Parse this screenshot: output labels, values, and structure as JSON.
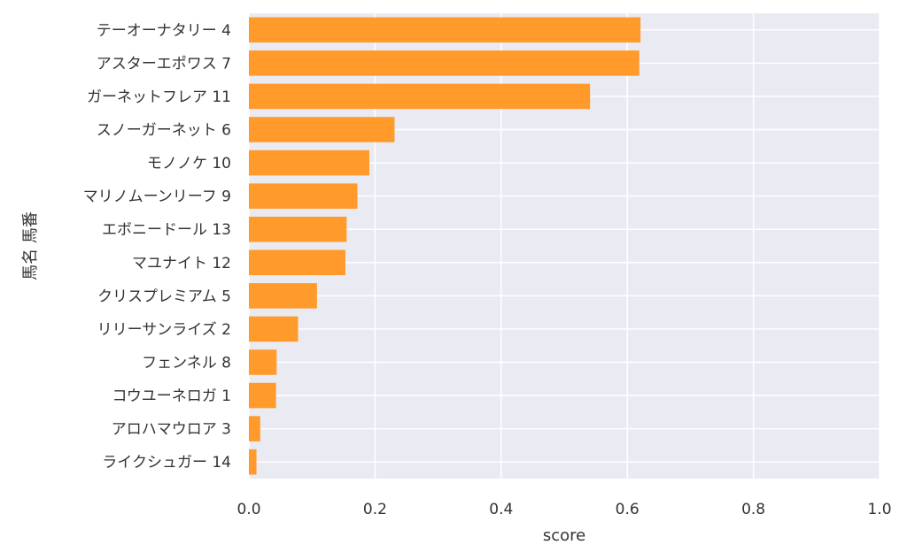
{
  "chart_data": {
    "type": "bar",
    "orientation": "horizontal",
    "categories": [
      "テーオーナタリー 4",
      "アスターエポワス 7",
      "ガーネットフレア 11",
      "スノーガーネット 6",
      "モノノケ 10",
      "マリノムーンリーフ 9",
      "エボニードール 13",
      "マユナイト 12",
      "クリスプレミアム 5",
      "リリーサンライズ 2",
      "フェンネル 8",
      "コウユーネロガ 1",
      "アロハマウロア 3",
      "ライクシュガー 14"
    ],
    "values": [
      0.621,
      0.619,
      0.541,
      0.231,
      0.191,
      0.172,
      0.155,
      0.153,
      0.108,
      0.078,
      0.044,
      0.043,
      0.018,
      0.012
    ],
    "xlabel": "score",
    "ylabel": "馬名 馬番",
    "xlim": [
      0,
      1.0
    ],
    "x_ticks": [
      "0.0",
      "0.2",
      "0.4",
      "0.6",
      "0.8",
      "1.0"
    ],
    "grid": true,
    "colors": {
      "bar": "#ff9a2b",
      "background": "#eaeaf2",
      "grid": "#ffffff"
    }
  }
}
